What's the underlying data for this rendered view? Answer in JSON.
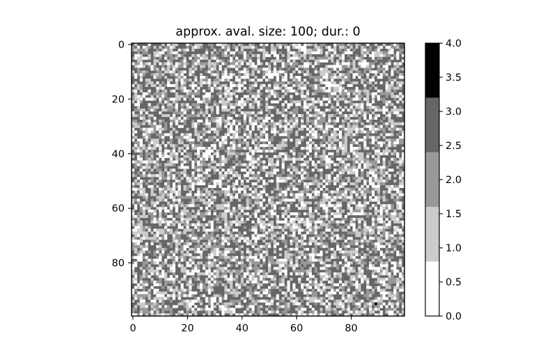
{
  "chart_data": {
    "type": "heatmap",
    "title": "approx. aval. size: 100; dur.:   0",
    "xlabel": "",
    "ylabel": "",
    "grid_size": [
      100,
      100
    ],
    "xlim": [
      -0.5,
      99.5
    ],
    "ylim": [
      99.5,
      -0.5
    ],
    "y_axis_inverted": true,
    "x_ticks": [
      0,
      20,
      40,
      60,
      80
    ],
    "y_ticks": [
      0,
      20,
      40,
      60,
      80
    ],
    "x_tick_labels": [
      "0",
      "20",
      "40",
      "60",
      "80"
    ],
    "y_tick_labels": [
      "0",
      "20",
      "40",
      "60",
      "80"
    ],
    "colormap": "discrete grayscale, 5 levels",
    "value_range": [
      0,
      4
    ],
    "value_levels": [
      0,
      1,
      2,
      3,
      4
    ],
    "level_colors": [
      "#ffffff",
      "#cccccc",
      "#999999",
      "#666666",
      "#000000"
    ],
    "approx_level_fractions": {
      "0": 0.2,
      "1": 0.2,
      "2": 0.2,
      "3": 0.4,
      "4": 0.0
    },
    "marked_cells": [
      {
        "row": 95,
        "col": 89,
        "value": 4
      }
    ],
    "colorbar": {
      "ticks": [
        0.0,
        0.5,
        1.0,
        1.5,
        2.0,
        2.5,
        3.0,
        3.5,
        4.0
      ],
      "tick_labels": [
        "0.0",
        "0.5",
        "1.0",
        "1.5",
        "2.0",
        "2.5",
        "3.0",
        "3.5",
        "4.0"
      ],
      "boundaries": [
        0,
        0.8,
        1.6,
        2.4,
        3.2,
        4.0
      ]
    }
  }
}
